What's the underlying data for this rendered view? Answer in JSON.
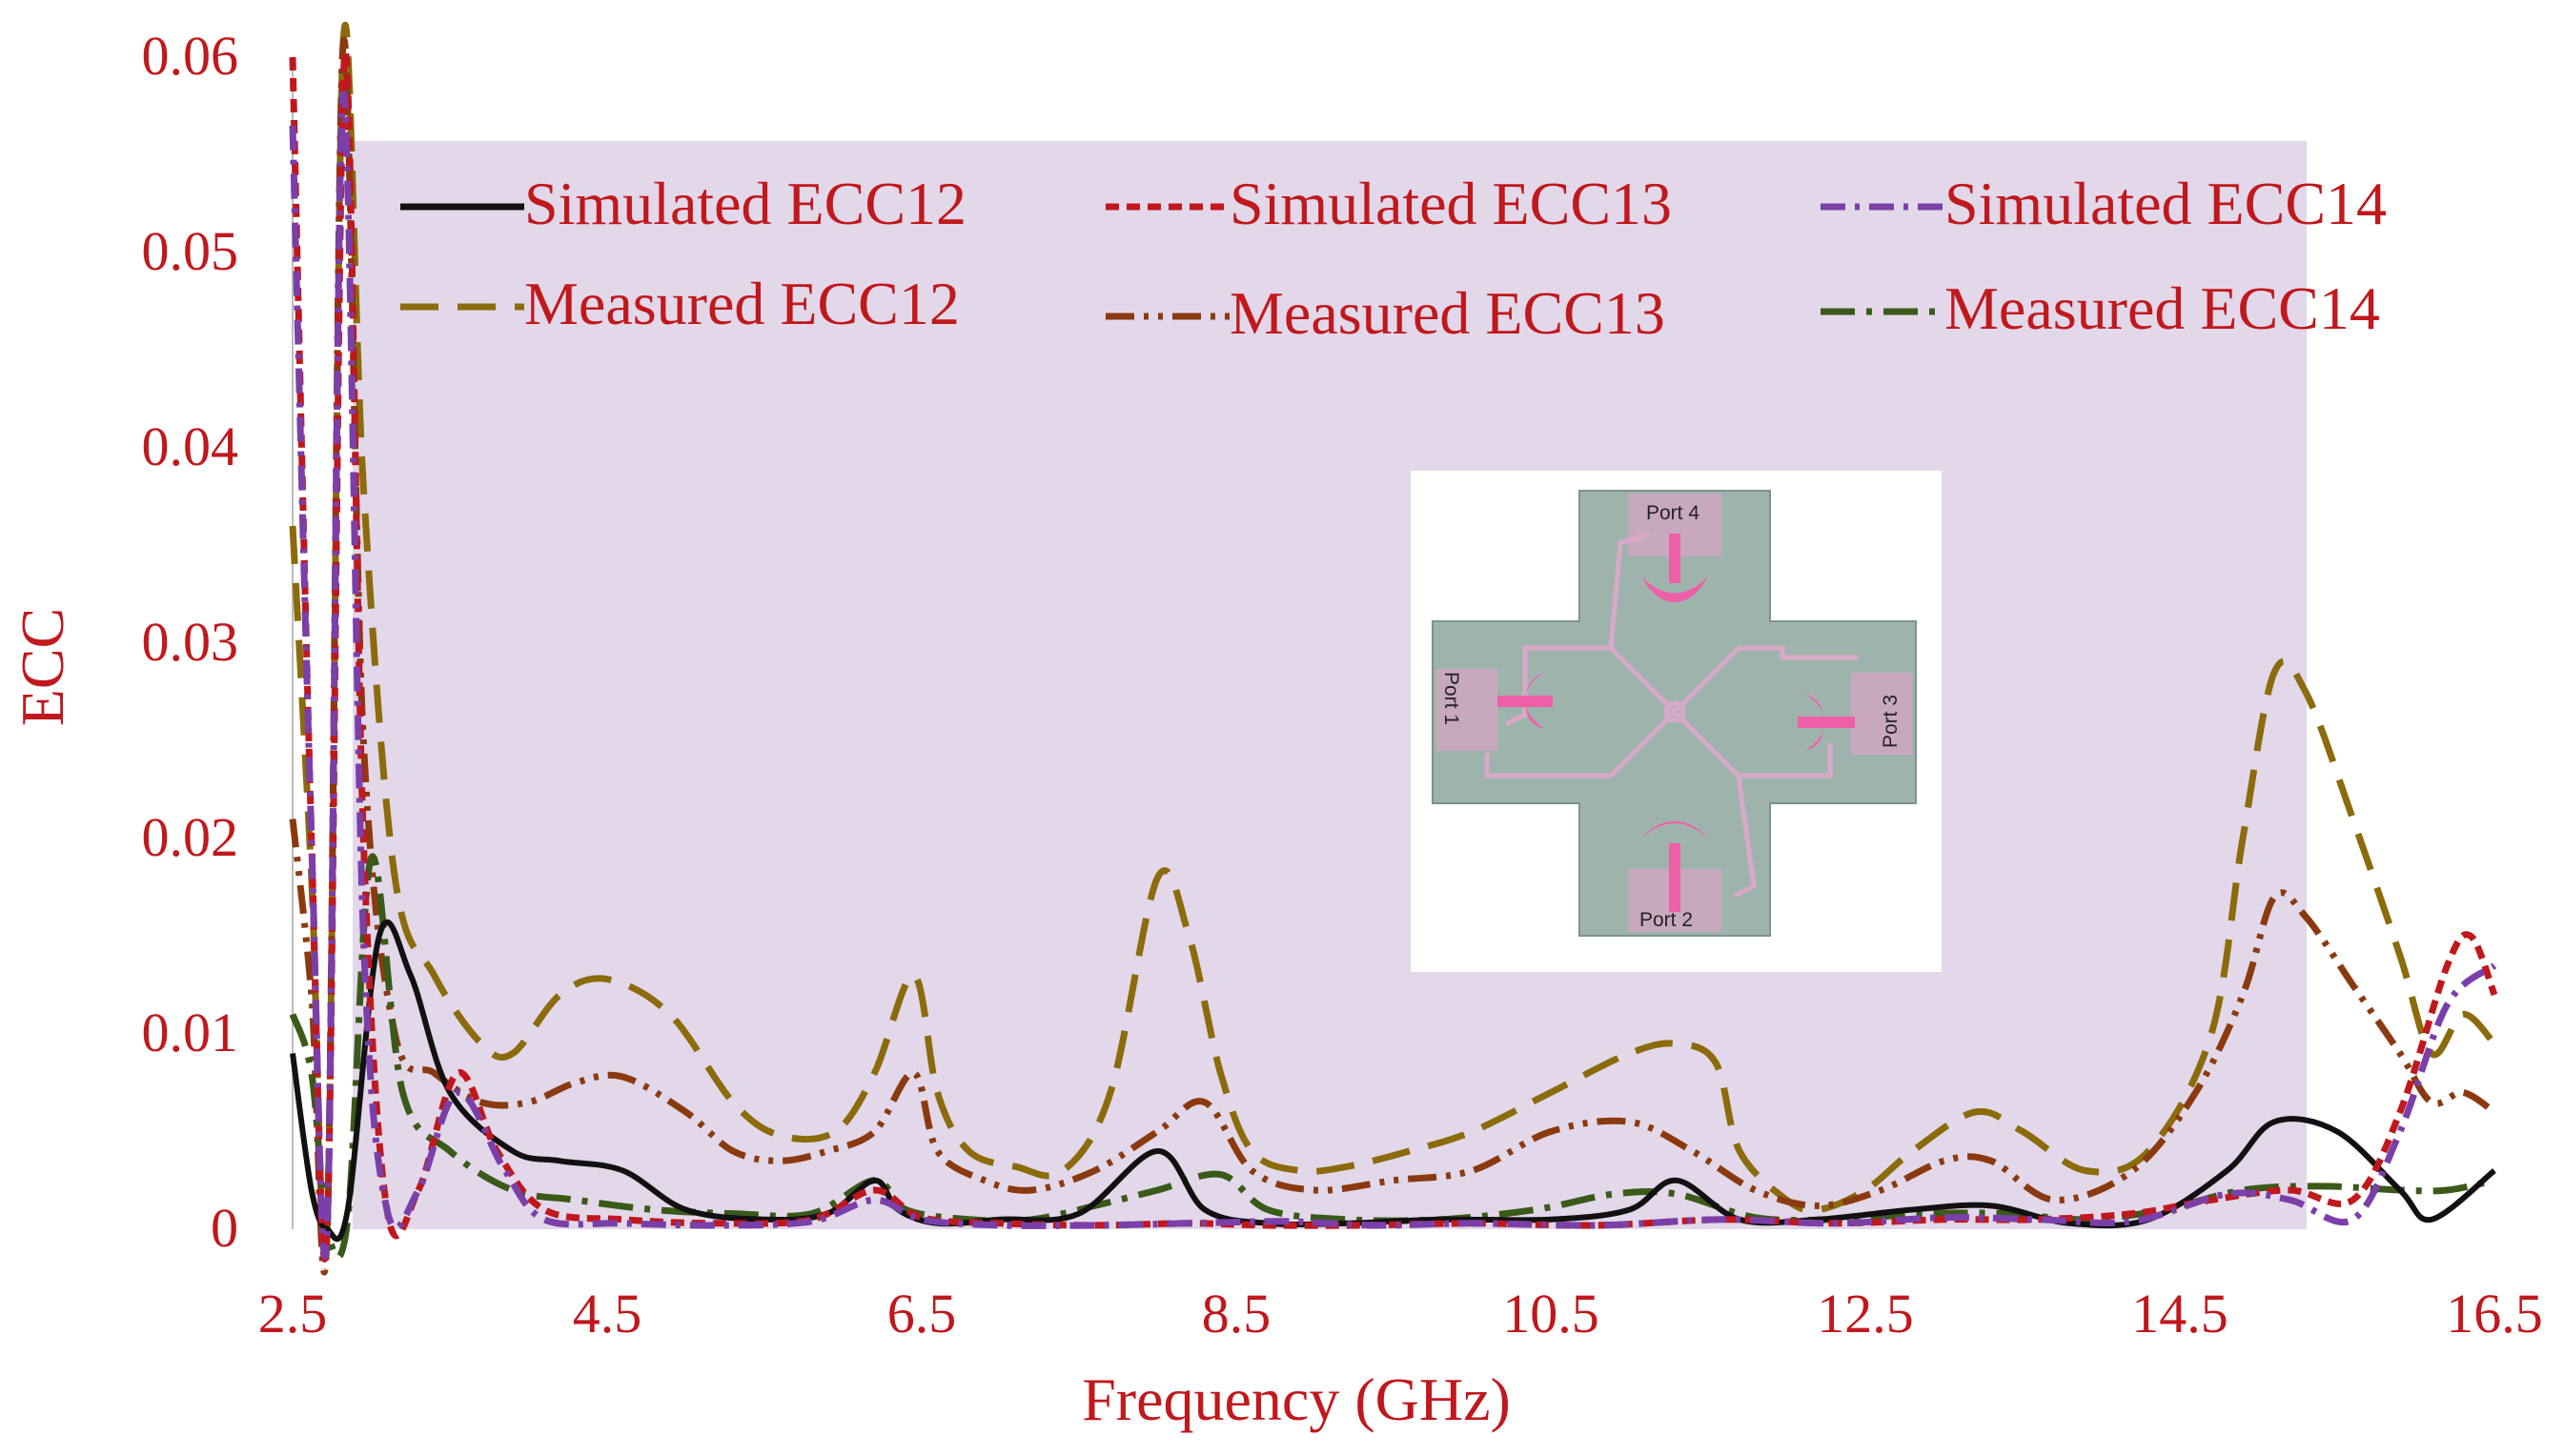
{
  "chart_data": {
    "type": "line",
    "xlabel": "Frequency (GHz)",
    "ylabel": "ECC",
    "xlim": [
      2.5,
      16.5
    ],
    "ylim": [
      0,
      0.06
    ],
    "x_ticks": [
      "2.5",
      "4.5",
      "6.5",
      "8.5",
      "10.5",
      "12.5",
      "14.5",
      "16.5"
    ],
    "y_ticks": [
      "0",
      "0.01",
      "0.02",
      "0.03",
      "0.04",
      "0.05",
      "0.06"
    ],
    "grid": false,
    "legend": "top, inside plot area, 3 columns x 2 rows",
    "series": [
      {
        "name": "Simulated ECC12",
        "color": "#111111",
        "dash": "solid",
        "points": [
          [
            2.5,
            0.009
          ],
          [
            2.62,
            0.002
          ],
          [
            2.72,
            0.0
          ],
          [
            2.85,
            0.001
          ],
          [
            3.05,
            0.015
          ],
          [
            3.25,
            0.013
          ],
          [
            3.5,
            0.007
          ],
          [
            3.9,
            0.004
          ],
          [
            4.2,
            0.0035
          ],
          [
            4.6,
            0.003
          ],
          [
            5.0,
            0.001
          ],
          [
            5.5,
            0.0005
          ],
          [
            5.9,
            0.0008
          ],
          [
            6.2,
            0.0025
          ],
          [
            6.35,
            0.001
          ],
          [
            6.6,
            0.0003
          ],
          [
            7.0,
            0.0005
          ],
          [
            7.5,
            0.0008
          ],
          [
            8.0,
            0.004
          ],
          [
            8.3,
            0.001
          ],
          [
            8.7,
            0.0003
          ],
          [
            9.2,
            0.0003
          ],
          [
            9.8,
            0.0005
          ],
          [
            10.5,
            0.0005
          ],
          [
            11.0,
            0.001
          ],
          [
            11.3,
            0.0025
          ],
          [
            11.7,
            0.0005
          ],
          [
            12.2,
            0.0005
          ],
          [
            12.8,
            0.001
          ],
          [
            13.3,
            0.0012
          ],
          [
            13.8,
            0.0003
          ],
          [
            14.3,
            0.0005
          ],
          [
            14.8,
            0.003
          ],
          [
            15.1,
            0.0055
          ],
          [
            15.5,
            0.005
          ],
          [
            15.9,
            0.002
          ],
          [
            16.1,
            0.0005
          ],
          [
            16.5,
            0.003
          ]
        ]
      },
      {
        "name": "Simulated ECC13",
        "color": "#c0181c",
        "dash": "short-dash",
        "points": [
          [
            2.5,
            0.06
          ],
          [
            2.62,
            0.02
          ],
          [
            2.72,
            0.0
          ],
          [
            2.83,
            0.06
          ],
          [
            2.95,
            0.02
          ],
          [
            3.1,
            0.001
          ],
          [
            3.3,
            0.002
          ],
          [
            3.55,
            0.008
          ],
          [
            3.8,
            0.004
          ],
          [
            4.1,
            0.001
          ],
          [
            4.6,
            0.0005
          ],
          [
            5.2,
            0.0003
          ],
          [
            5.8,
            0.0005
          ],
          [
            6.2,
            0.002
          ],
          [
            6.5,
            0.0006
          ],
          [
            7.0,
            0.0003
          ],
          [
            7.6,
            0.0002
          ],
          [
            8.2,
            0.0003
          ],
          [
            8.7,
            0.0002
          ],
          [
            9.3,
            0.0002
          ],
          [
            10.0,
            0.0003
          ],
          [
            10.8,
            0.0002
          ],
          [
            11.6,
            0.0005
          ],
          [
            12.3,
            0.0003
          ],
          [
            13.0,
            0.0005
          ],
          [
            13.6,
            0.0005
          ],
          [
            14.2,
            0.0008
          ],
          [
            14.7,
            0.0015
          ],
          [
            15.2,
            0.002
          ],
          [
            15.6,
            0.0015
          ],
          [
            15.9,
            0.006
          ],
          [
            16.2,
            0.0135
          ],
          [
            16.35,
            0.015
          ],
          [
            16.5,
            0.012
          ]
        ]
      },
      {
        "name": "Simulated ECC14",
        "color": "#7a3fa8",
        "dash": "dash-dot",
        "points": [
          [
            2.5,
            0.0565
          ],
          [
            2.62,
            0.02
          ],
          [
            2.72,
            0.0
          ],
          [
            2.82,
            0.058
          ],
          [
            2.95,
            0.015
          ],
          [
            3.1,
            0.001
          ],
          [
            3.3,
            0.002
          ],
          [
            3.55,
            0.007
          ],
          [
            3.85,
            0.003
          ],
          [
            4.1,
            0.0005
          ],
          [
            4.6,
            0.0003
          ],
          [
            5.2,
            0.0002
          ],
          [
            5.8,
            0.0004
          ],
          [
            6.2,
            0.0015
          ],
          [
            6.5,
            0.0005
          ],
          [
            7.0,
            0.0002
          ],
          [
            7.6,
            0.0002
          ],
          [
            8.2,
            0.0003
          ],
          [
            8.8,
            0.0004
          ],
          [
            9.4,
            0.0002
          ],
          [
            10.0,
            0.0003
          ],
          [
            10.8,
            0.0002
          ],
          [
            11.6,
            0.0005
          ],
          [
            12.3,
            0.0003
          ],
          [
            13.0,
            0.0006
          ],
          [
            13.6,
            0.0005
          ],
          [
            14.2,
            0.0004
          ],
          [
            14.8,
            0.0018
          ],
          [
            15.2,
            0.0015
          ],
          [
            15.6,
            0.0005
          ],
          [
            15.9,
            0.005
          ],
          [
            16.2,
            0.0115
          ],
          [
            16.5,
            0.0135
          ]
        ]
      },
      {
        "name": "Measured ECC12",
        "color": "#8b6b0b",
        "dash": "long-dash",
        "points": [
          [
            2.5,
            0.036
          ],
          [
            2.62,
            0.018
          ],
          [
            2.72,
            0.0
          ],
          [
            2.82,
            0.0605
          ],
          [
            2.95,
            0.038
          ],
          [
            3.15,
            0.018
          ],
          [
            3.4,
            0.013
          ],
          [
            3.7,
            0.0095
          ],
          [
            3.9,
            0.009
          ],
          [
            4.2,
            0.012
          ],
          [
            4.5,
            0.0128
          ],
          [
            4.9,
            0.011
          ],
          [
            5.3,
            0.0065
          ],
          [
            5.6,
            0.0048
          ],
          [
            5.95,
            0.005
          ],
          [
            6.2,
            0.008
          ],
          [
            6.45,
            0.013
          ],
          [
            6.6,
            0.007
          ],
          [
            6.8,
            0.004
          ],
          [
            7.1,
            0.0032
          ],
          [
            7.4,
            0.003
          ],
          [
            7.7,
            0.007
          ],
          [
            8.0,
            0.018
          ],
          [
            8.2,
            0.015
          ],
          [
            8.4,
            0.008
          ],
          [
            8.6,
            0.004
          ],
          [
            8.9,
            0.003
          ],
          [
            9.2,
            0.0032
          ],
          [
            9.6,
            0.004
          ],
          [
            10.0,
            0.005
          ],
          [
            10.5,
            0.007
          ],
          [
            11.0,
            0.009
          ],
          [
            11.3,
            0.0095
          ],
          [
            11.55,
            0.0085
          ],
          [
            11.7,
            0.004
          ],
          [
            12.0,
            0.0015
          ],
          [
            12.2,
            0.001
          ],
          [
            12.5,
            0.002
          ],
          [
            12.8,
            0.004
          ],
          [
            13.2,
            0.006
          ],
          [
            13.5,
            0.005
          ],
          [
            13.9,
            0.003
          ],
          [
            14.3,
            0.004
          ],
          [
            14.7,
            0.01
          ],
          [
            14.9,
            0.02
          ],
          [
            15.1,
            0.0285
          ],
          [
            15.3,
            0.0275
          ],
          [
            15.6,
            0.021
          ],
          [
            15.9,
            0.014
          ],
          [
            16.1,
            0.009
          ],
          [
            16.3,
            0.011
          ],
          [
            16.5,
            0.0095
          ]
        ]
      },
      {
        "name": "Measured ECC13",
        "color": "#8b3a10",
        "dash": "dash-dot-dot",
        "points": [
          [
            2.5,
            0.021
          ],
          [
            2.62,
            0.012
          ],
          [
            2.72,
            0.0
          ],
          [
            2.82,
            0.0605
          ],
          [
            2.95,
            0.025
          ],
          [
            3.15,
            0.01
          ],
          [
            3.4,
            0.008
          ],
          [
            3.7,
            0.0065
          ],
          [
            4.0,
            0.0065
          ],
          [
            4.3,
            0.0075
          ],
          [
            4.6,
            0.0078
          ],
          [
            5.0,
            0.006
          ],
          [
            5.3,
            0.004
          ],
          [
            5.6,
            0.0035
          ],
          [
            5.9,
            0.004
          ],
          [
            6.2,
            0.005
          ],
          [
            6.45,
            0.008
          ],
          [
            6.6,
            0.004
          ],
          [
            6.9,
            0.0025
          ],
          [
            7.2,
            0.002
          ],
          [
            7.6,
            0.003
          ],
          [
            8.0,
            0.005
          ],
          [
            8.3,
            0.0065
          ],
          [
            8.6,
            0.003
          ],
          [
            9.0,
            0.002
          ],
          [
            9.5,
            0.0025
          ],
          [
            10.0,
            0.003
          ],
          [
            10.5,
            0.005
          ],
          [
            11.0,
            0.0055
          ],
          [
            11.4,
            0.004
          ],
          [
            11.8,
            0.002
          ],
          [
            12.2,
            0.0012
          ],
          [
            12.6,
            0.002
          ],
          [
            13.0,
            0.0035
          ],
          [
            13.3,
            0.0035
          ],
          [
            13.7,
            0.0015
          ],
          [
            14.2,
            0.003
          ],
          [
            14.6,
            0.007
          ],
          [
            14.9,
            0.012
          ],
          [
            15.1,
            0.017
          ],
          [
            15.3,
            0.016
          ],
          [
            15.6,
            0.0125
          ],
          [
            15.9,
            0.009
          ],
          [
            16.1,
            0.0065
          ],
          [
            16.3,
            0.007
          ],
          [
            16.5,
            0.006
          ]
        ]
      },
      {
        "name": "Measured ECC14",
        "color": "#3a5a1a",
        "dash": "long-dash-dot",
        "points": [
          [
            2.5,
            0.011
          ],
          [
            2.62,
            0.008
          ],
          [
            2.72,
            0.0
          ],
          [
            2.85,
            0.0005
          ],
          [
            3.0,
            0.019
          ],
          [
            3.2,
            0.007
          ],
          [
            3.5,
            0.004
          ],
          [
            3.9,
            0.002
          ],
          [
            4.3,
            0.0015
          ],
          [
            4.8,
            0.001
          ],
          [
            5.3,
            0.0008
          ],
          [
            5.8,
            0.0008
          ],
          [
            6.2,
            0.0025
          ],
          [
            6.4,
            0.001
          ],
          [
            6.8,
            0.0005
          ],
          [
            7.2,
            0.0005
          ],
          [
            7.6,
            0.0012
          ],
          [
            8.0,
            0.002
          ],
          [
            8.4,
            0.0028
          ],
          [
            8.7,
            0.001
          ],
          [
            9.2,
            0.0005
          ],
          [
            9.8,
            0.0005
          ],
          [
            10.4,
            0.001
          ],
          [
            10.9,
            0.0018
          ],
          [
            11.3,
            0.0018
          ],
          [
            11.8,
            0.0006
          ],
          [
            12.3,
            0.0005
          ],
          [
            12.9,
            0.0008
          ],
          [
            13.4,
            0.0008
          ],
          [
            13.9,
            0.0005
          ],
          [
            14.4,
            0.001
          ],
          [
            14.9,
            0.002
          ],
          [
            15.4,
            0.0022
          ],
          [
            15.9,
            0.002
          ],
          [
            16.2,
            0.002
          ],
          [
            16.5,
            0.0025
          ]
        ]
      }
    ]
  },
  "colors": {
    "axis_text": "#c0181c",
    "plot_background": "#e2d8ea",
    "inset_board": "#9fb3ad",
    "inset_patch": "#c8a8bf",
    "inset_feed": "#ee5fa8"
  },
  "inset": {
    "ports": [
      "Port 4",
      "Port 1",
      "Port 3",
      "Port 2"
    ]
  }
}
